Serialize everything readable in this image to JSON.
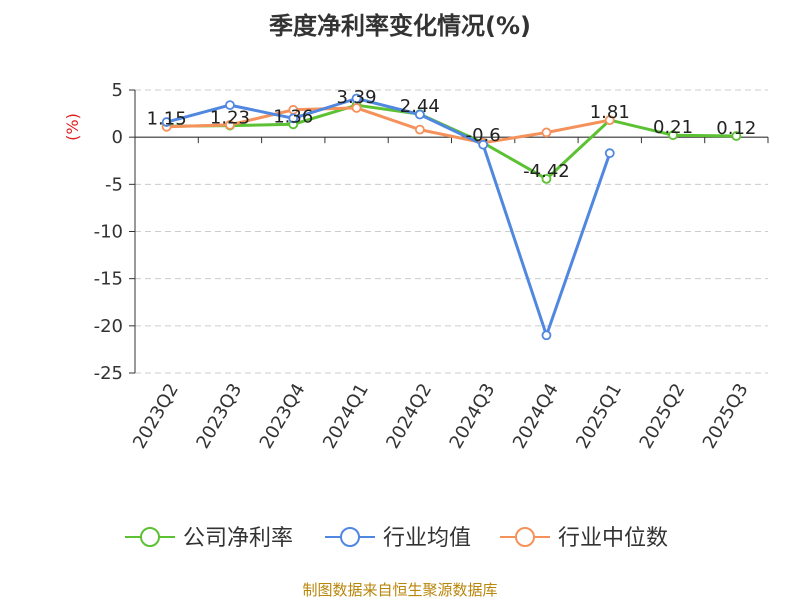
{
  "chart_data": {
    "type": "line",
    "title": "季度净利率变化情况(%)",
    "ylabel": "(%)",
    "xlabel": "",
    "categories": [
      "2023Q2",
      "2023Q3",
      "2023Q4",
      "2024Q1",
      "2024Q2",
      "2024Q3",
      "2024Q4",
      "2025Q1",
      "2025Q2",
      "2025Q3"
    ],
    "ylim": [
      -25,
      5
    ],
    "yticks": [
      5,
      0,
      -5,
      -10,
      -15,
      -20,
      -25
    ],
    "grid": true,
    "legend_position": "bottom",
    "series": [
      {
        "name": "公司净利率",
        "color": "#5cc133",
        "values": [
          1.15,
          1.23,
          1.36,
          3.39,
          2.44,
          -0.6,
          -4.42,
          1.81,
          0.21,
          0.12
        ],
        "labels": [
          "1.15",
          "1.23",
          "1.36",
          "3.39",
          "2.44",
          "-0.6",
          "-4.42",
          "1.81",
          "0.21",
          "0.12"
        ]
      },
      {
        "name": "行业均值",
        "color": "#5087e0",
        "values": [
          1.6,
          3.4,
          2.0,
          4.1,
          2.4,
          -0.8,
          -21.0,
          -1.7,
          null,
          null
        ]
      },
      {
        "name": "行业中位数",
        "color": "#f5915a",
        "values": [
          1.1,
          1.3,
          2.9,
          3.1,
          0.8,
          -0.6,
          0.5,
          1.81,
          null,
          null
        ]
      }
    ]
  },
  "source": "制图数据来自恒生聚源数据库"
}
